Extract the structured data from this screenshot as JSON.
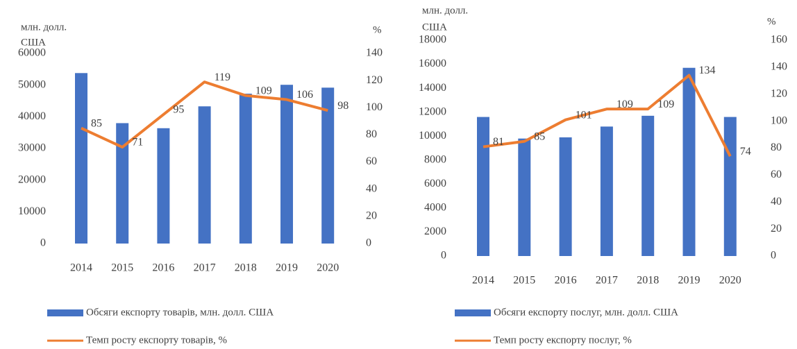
{
  "chart_data": [
    {
      "type": "bar_line",
      "ylabel": [
        "млн. долл.",
        "США"
      ],
      "y2label": "%",
      "categories": [
        "2014",
        "2015",
        "2016",
        "2017",
        "2018",
        "2019",
        "2020"
      ],
      "series": [
        {
          "name": "Обсяги експорту товарів, млн. долл. США",
          "color": "#4472c4",
          "values": [
            53800,
            38000,
            36400,
            43300,
            47300,
            50100,
            49200
          ]
        },
        {
          "name": "Темп росту експорту товарів, %",
          "color": "#ed7d31",
          "axis": "y2",
          "values": [
            85,
            71,
            95,
            119,
            109,
            106,
            98
          ]
        }
      ],
      "ylim": [
        0,
        60000
      ],
      "yticks": [
        0,
        10000,
        20000,
        30000,
        40000,
        50000,
        60000
      ],
      "y2lim": [
        0,
        140
      ],
      "y2ticks": [
        0,
        20,
        40,
        60,
        80,
        100,
        120,
        140
      ]
    },
    {
      "type": "bar_line",
      "ylabel": [
        "млн. долл.",
        "США"
      ],
      "y2label": "%",
      "categories": [
        "2014",
        "2015",
        "2016",
        "2017",
        "2018",
        "2019",
        "2020"
      ],
      "series": [
        {
          "name": "Обсяги експорту послуг, млн. долл. США",
          "color": "#4472c4",
          "values": [
            11600,
            9800,
            9900,
            10800,
            11700,
            15700,
            11600
          ]
        },
        {
          "name": "Темп росту експорту послуг, %",
          "color": "#ed7d31",
          "axis": "y2",
          "values": [
            81,
            85,
            101,
            109,
            109,
            134,
            74
          ]
        }
      ],
      "ylim": [
        0,
        18000
      ],
      "yticks": [
        0,
        2000,
        4000,
        6000,
        8000,
        10000,
        12000,
        14000,
        16000,
        18000
      ],
      "y2lim": [
        0,
        160
      ],
      "y2ticks": [
        0,
        20,
        40,
        60,
        80,
        100,
        120,
        140,
        160
      ]
    }
  ]
}
